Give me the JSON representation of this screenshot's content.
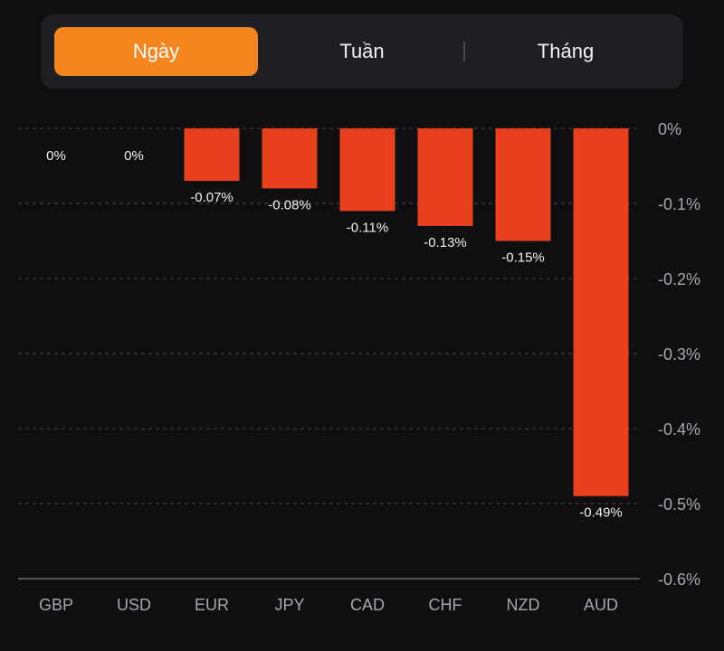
{
  "tabs": [
    {
      "label": "Ngày",
      "active": true
    },
    {
      "label": "Tuần",
      "active": false
    },
    {
      "label": "Tháng",
      "active": false
    }
  ],
  "colors": {
    "accent": "#f5861f",
    "bar": "#e8401c",
    "background": "#0f0f11",
    "segment_bg": "#1e1f23"
  },
  "chart_data": {
    "type": "bar",
    "categories": [
      "GBP",
      "USD",
      "EUR",
      "JPY",
      "CAD",
      "CHF",
      "NZD",
      "AUD"
    ],
    "values": [
      0,
      0,
      -0.07,
      -0.08,
      -0.11,
      -0.13,
      -0.15,
      -0.49
    ],
    "data_labels": [
      "0%",
      "0%",
      "-0.07%",
      "-0.08%",
      "-0.11%",
      "-0.13%",
      "-0.15%",
      "-0.49%"
    ],
    "y_ticks": [
      0,
      -0.1,
      -0.2,
      -0.3,
      -0.4,
      -0.5,
      -0.6
    ],
    "y_tick_labels": [
      "0%",
      "-0.1%",
      "-0.2%",
      "-0.3%",
      "-0.4%",
      "-0.5%",
      "-0.6%"
    ],
    "ylim": [
      -0.6,
      0
    ],
    "y_axis_position": "right",
    "grid": true,
    "legend": "none"
  }
}
